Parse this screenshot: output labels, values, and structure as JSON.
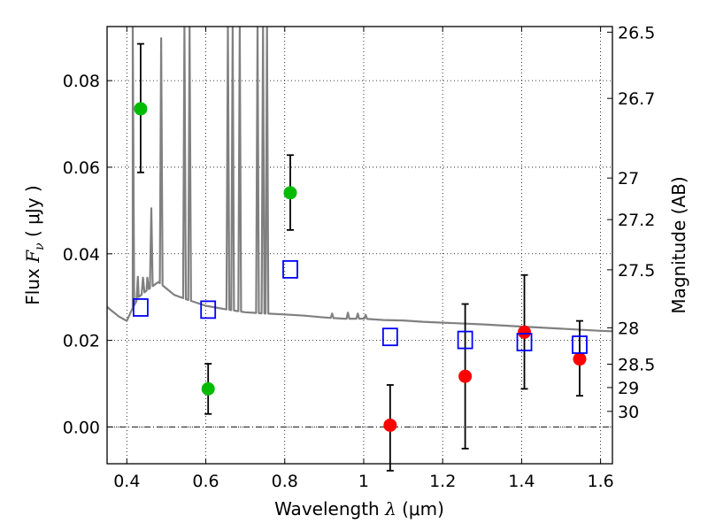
{
  "chart_data": {
    "type": "scatter",
    "xlabel": {
      "prefix": "Wavelength  ",
      "symbol": "λ",
      "unit": " (μm)"
    },
    "ylabel": {
      "prefix": "Flux  ",
      "symbol": "F",
      "subscript": "ν",
      "unit": "  ( μJy )"
    },
    "y2label": "Magnitude (AB)",
    "xlim": [
      0.35,
      1.63
    ],
    "ylim": [
      -0.0085,
      0.0925
    ],
    "grid": true,
    "x_ticks": [
      0.4,
      0.6,
      0.8,
      1.0,
      1.2,
      1.4,
      1.6
    ],
    "x_tick_labels": [
      "0.4",
      "0.6",
      "0.8",
      "1",
      "1.2",
      "1.4",
      "1.6"
    ],
    "y_ticks": [
      0.0,
      0.02,
      0.04,
      0.06,
      0.08
    ],
    "y_tick_labels": [
      "0.00",
      "0.02",
      "0.04",
      "0.06",
      "0.08"
    ],
    "y2_ticks": [
      {
        "label": "26.5",
        "flux": 0.0912
      },
      {
        "label": "26.7",
        "flux": 0.0759
      },
      {
        "label": "27",
        "flux": 0.0575
      },
      {
        "label": "27.2",
        "flux": 0.0479
      },
      {
        "label": "27.5",
        "flux": 0.0363
      },
      {
        "label": "28",
        "flux": 0.0229
      },
      {
        "label": "28.5",
        "flux": 0.0145
      },
      {
        "label": "29",
        "flux": 0.0091
      },
      {
        "label": "30",
        "flux": 0.0036
      }
    ],
    "series": [
      {
        "marker": "circle",
        "color": "#00bb00",
        "points": [
          {
            "x": 0.435,
            "y": 0.0735,
            "err_low": 0.0147,
            "err_high": 0.015
          },
          {
            "x": 0.606,
            "y": 0.0088,
            "err_low": 0.0058,
            "err_high": 0.0058
          },
          {
            "x": 0.814,
            "y": 0.0541,
            "err_low": 0.0086,
            "err_high": 0.0087
          }
        ]
      },
      {
        "marker": "circle",
        "color": "#ff0000",
        "points": [
          {
            "x": 1.067,
            "y": 0.0004,
            "err_low": 0.0105,
            "err_high": 0.0093
          },
          {
            "x": 1.257,
            "y": 0.0117,
            "err_low": 0.0167,
            "err_high": 0.0167
          },
          {
            "x": 1.407,
            "y": 0.0219,
            "err_low": 0.0131,
            "err_high": 0.0132
          },
          {
            "x": 1.547,
            "y": 0.0157,
            "err_low": 0.0085,
            "err_high": 0.0088
          }
        ]
      },
      {
        "marker": "open-square",
        "color": "#0000ff",
        "points": [
          {
            "x": 0.435,
            "y": 0.0276
          },
          {
            "x": 0.606,
            "y": 0.0271
          },
          {
            "x": 0.814,
            "y": 0.0364
          },
          {
            "x": 1.067,
            "y": 0.0208
          },
          {
            "x": 1.257,
            "y": 0.0201
          },
          {
            "x": 1.407,
            "y": 0.0196
          },
          {
            "x": 1.547,
            "y": 0.019
          }
        ]
      }
    ],
    "model_spectrum": {
      "color": "#808080",
      "continuum": [
        [
          0.35,
          0.0277
        ],
        [
          0.38,
          0.0255
        ],
        [
          0.4,
          0.0245
        ],
        [
          0.415,
          0.0275
        ],
        [
          0.43,
          0.03
        ],
        [
          0.45,
          0.0315
        ],
        [
          0.48,
          0.0335
        ],
        [
          0.5,
          0.032
        ],
        [
          0.52,
          0.0305
        ],
        [
          0.55,
          0.0295
        ],
        [
          0.6,
          0.028
        ],
        [
          0.65,
          0.0272
        ],
        [
          0.7,
          0.0265
        ],
        [
          0.75,
          0.0262
        ],
        [
          0.8,
          0.026
        ],
        [
          0.85,
          0.0257
        ],
        [
          0.9,
          0.0253
        ],
        [
          0.95,
          0.025
        ],
        [
          1.0,
          0.025
        ],
        [
          1.05,
          0.0247
        ],
        [
          1.1,
          0.0246
        ],
        [
          1.15,
          0.0243
        ],
        [
          1.2,
          0.0241
        ],
        [
          1.3,
          0.0237
        ],
        [
          1.4,
          0.0232
        ],
        [
          1.5,
          0.0227
        ],
        [
          1.6,
          0.0222
        ],
        [
          1.63,
          0.0221
        ]
      ],
      "lines": [
        {
          "x": 0.415,
          "peak": 0.0925
        },
        {
          "x": 0.428,
          "peak": 0.0347
        },
        {
          "x": 0.441,
          "peak": 0.0345
        },
        {
          "x": 0.452,
          "peak": 0.0345
        },
        {
          "x": 0.462,
          "peak": 0.0505
        },
        {
          "x": 0.487,
          "peak": 0.0898
        },
        {
          "x": 0.546,
          "peak": 0.0925
        },
        {
          "x": 0.559,
          "peak": 0.0925
        },
        {
          "x": 0.656,
          "peak": 0.0925
        },
        {
          "x": 0.668,
          "peak": 0.0925
        },
        {
          "x": 0.686,
          "peak": 0.0925
        },
        {
          "x": 0.731,
          "peak": 0.0925
        },
        {
          "x": 0.745,
          "peak": 0.0925
        },
        {
          "x": 0.755,
          "peak": 0.0925
        },
        {
          "x": 0.92,
          "peak": 0.0262
        },
        {
          "x": 0.96,
          "peak": 0.0264
        },
        {
          "x": 0.985,
          "peak": 0.0262
        },
        {
          "x": 1.005,
          "peak": 0.0259
        }
      ]
    }
  }
}
